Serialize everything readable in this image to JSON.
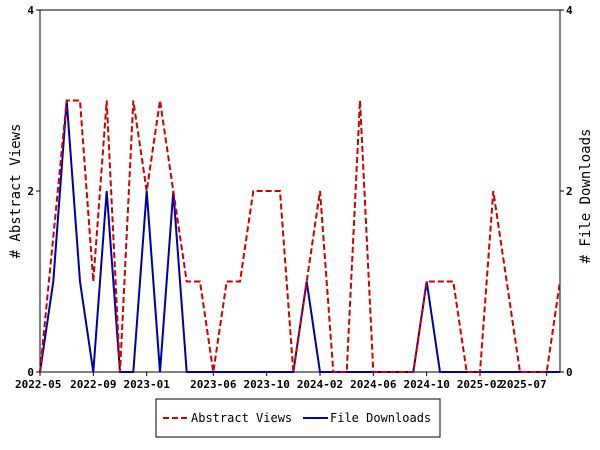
{
  "chart_data": {
    "type": "line",
    "title": "",
    "ylabel_left": "# Abstract Views",
    "ylabel_right": "# File Downloads",
    "ylim": [
      0,
      4
    ],
    "y_ticks": [
      0,
      2,
      4
    ],
    "x_tick_labels": [
      "2022-05",
      "2022-09",
      "2023-01",
      "2023-06",
      "2023-10",
      "2024-02",
      "2024-06",
      "2024-10",
      "2025-02",
      "2025-07"
    ],
    "grid": false,
    "legend_position": "bottom",
    "colors": {
      "abstract_views": "#cc0000",
      "file_downloads": "#0000aa"
    },
    "series": [
      {
        "name": "Abstract Views",
        "key": "abstract_views",
        "style": "dashed",
        "values": [
          [
            "2022-05",
            0
          ],
          [
            "2022-07",
            3
          ],
          [
            "2022-08",
            3
          ],
          [
            "2022-09",
            1
          ],
          [
            "2022-10",
            3
          ],
          [
            "2022-11",
            0
          ],
          [
            "2022-12",
            3
          ],
          [
            "2023-01",
            2
          ],
          [
            "2023-02",
            3
          ],
          [
            "2023-03",
            2
          ],
          [
            "2023-04",
            1
          ],
          [
            "2023-05",
            1
          ],
          [
            "2023-06",
            0
          ],
          [
            "2023-07",
            1
          ],
          [
            "2023-08",
            1
          ],
          [
            "2023-09",
            2
          ],
          [
            "2023-10",
            2
          ],
          [
            "2023-11",
            2
          ],
          [
            "2023-12",
            0
          ],
          [
            "2024-01",
            1
          ],
          [
            "2024-02",
            2
          ],
          [
            "2024-03",
            0
          ],
          [
            "2024-04",
            0
          ],
          [
            "2024-05",
            3
          ],
          [
            "2024-06",
            0
          ],
          [
            "2024-07",
            0
          ],
          [
            "2024-08",
            0
          ],
          [
            "2024-09",
            0
          ],
          [
            "2024-10",
            1
          ],
          [
            "2024-11",
            1
          ],
          [
            "2024-12",
            1
          ],
          [
            "2025-01",
            0
          ],
          [
            "2025-02",
            0
          ],
          [
            "2025-03",
            2
          ],
          [
            "2025-04",
            1
          ],
          [
            "2025-05",
            0
          ],
          [
            "2025-06",
            0
          ],
          [
            "2025-07",
            0
          ],
          [
            "2025-08",
            1
          ]
        ]
      },
      {
        "name": "File Downloads",
        "key": "file_downloads",
        "style": "solid",
        "values": [
          [
            "2022-05",
            0
          ],
          [
            "2022-06",
            1
          ],
          [
            "2022-07",
            3
          ],
          [
            "2022-08",
            1
          ],
          [
            "2022-09",
            0
          ],
          [
            "2022-10",
            2
          ],
          [
            "2022-11",
            0
          ],
          [
            "2022-12",
            0
          ],
          [
            "2023-01",
            2
          ],
          [
            "2023-02",
            0
          ],
          [
            "2023-03",
            2
          ],
          [
            "2023-04",
            0
          ],
          [
            "2023-05",
            0
          ],
          [
            "2023-06",
            0
          ],
          [
            "2023-07",
            0
          ],
          [
            "2023-08",
            0
          ],
          [
            "2023-09",
            0
          ],
          [
            "2023-10",
            0
          ],
          [
            "2023-11",
            0
          ],
          [
            "2023-12",
            0
          ],
          [
            "2024-01",
            1
          ],
          [
            "2024-02",
            0
          ],
          [
            "2024-03",
            0
          ],
          [
            "2024-04",
            0
          ],
          [
            "2024-05",
            0
          ],
          [
            "2024-06",
            0
          ],
          [
            "2024-07",
            0
          ],
          [
            "2024-08",
            0
          ],
          [
            "2024-09",
            0
          ],
          [
            "2024-10",
            1
          ],
          [
            "2024-11",
            0
          ],
          [
            "2024-12",
            0
          ],
          [
            "2025-01",
            0
          ],
          [
            "2025-02",
            0
          ],
          [
            "2025-03",
            0
          ],
          [
            "2025-04",
            0
          ],
          [
            "2025-05",
            0
          ],
          [
            "2025-06",
            0
          ],
          [
            "2025-07",
            0
          ],
          [
            "2025-08",
            0
          ]
        ]
      }
    ]
  }
}
